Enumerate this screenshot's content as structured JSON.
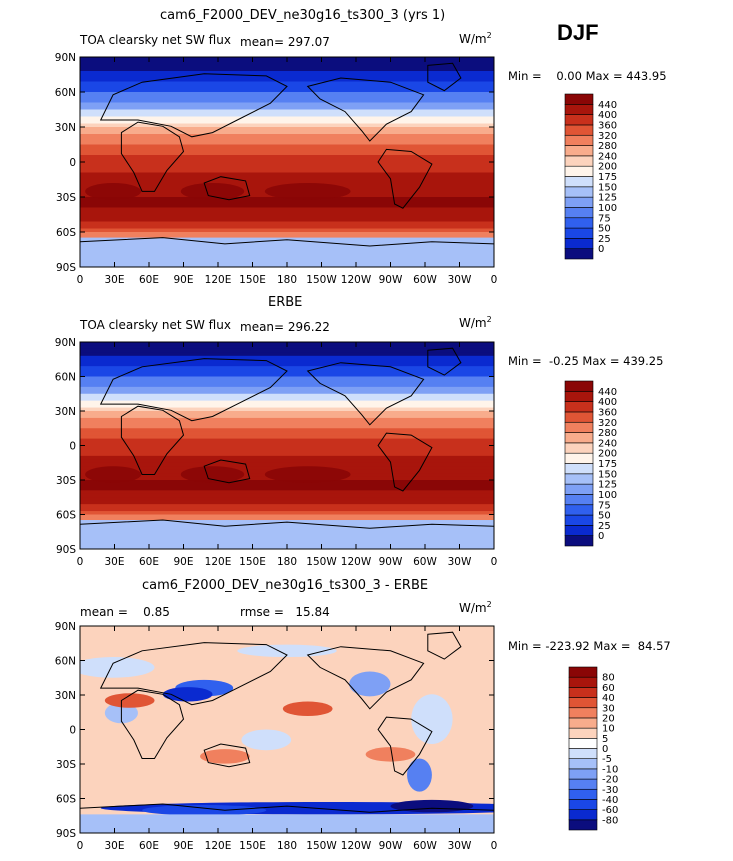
{
  "season": "DJF",
  "x_tick_labels": [
    "0",
    "30E",
    "60E",
    "90E",
    "120E",
    "150E",
    "180",
    "150W",
    "120W",
    "90W",
    "60W",
    "30W",
    "0"
  ],
  "y_tick_labels": [
    "90N",
    "60N",
    "30N",
    "0",
    "30S",
    "60S",
    "90S"
  ],
  "panels": [
    {
      "title": "cam6_F2000_DEV_ne30g16_ts300_3 (yrs 1)",
      "left_text": "TOA clearsky net SW flux",
      "mean_text": "mean= 297.07",
      "units_base": "W/m",
      "units_sup": "2",
      "range_text": "Min =    0.00 Max = 443.95",
      "colorbar_labels": [
        "440",
        "400",
        "360",
        "320",
        "280",
        "240",
        "200",
        "175",
        "150",
        "125",
        "100",
        "75",
        "50",
        "25",
        "0"
      ]
    },
    {
      "title": "ERBE",
      "left_text": "TOA clearsky net SW flux",
      "mean_text": "mean= 296.22",
      "units_base": "W/m",
      "units_sup": "2",
      "range_text": "Min =  -0.25 Max = 439.25",
      "colorbar_labels": [
        "440",
        "400",
        "360",
        "320",
        "280",
        "240",
        "200",
        "175",
        "150",
        "125",
        "100",
        "75",
        "50",
        "25",
        "0"
      ]
    },
    {
      "title": "cam6_F2000_DEV_ne30g16_ts300_3 - ERBE",
      "left_text": "mean =    0.85",
      "mean_text": "rmse =   15.84",
      "units_base": "W/m",
      "units_sup": "2",
      "range_text": "Min = -223.92 Max =  84.57",
      "colorbar_labels": [
        "80",
        "60",
        "40",
        "30",
        "20",
        "10",
        "5",
        "0",
        "-5",
        "-10",
        "-20",
        "-30",
        "-40",
        "-60",
        "-80"
      ]
    }
  ],
  "colors": {
    "abs_scale": [
      "#0b0d7e",
      "#0a2ad0",
      "#1a47e6",
      "#3060ee",
      "#5680f2",
      "#7ea0f5",
      "#a6c0f8",
      "#cfdffb",
      "#fff4ea",
      "#fcd3bd",
      "#f8ac8c",
      "#f0805e",
      "#e05535",
      "#c8301c",
      "#a8150c",
      "#8a0606"
    ],
    "diff_scale": [
      "#0b0d7e",
      "#0a2ad0",
      "#1a47e6",
      "#3060ee",
      "#5680f2",
      "#7ea0f5",
      "#a6c0f8",
      "#cfdffb",
      "#ffffff",
      "#fcd3bd",
      "#f8ac8c",
      "#f0805e",
      "#e05535",
      "#c8301c",
      "#a8150c",
      "#8a0606"
    ]
  }
}
